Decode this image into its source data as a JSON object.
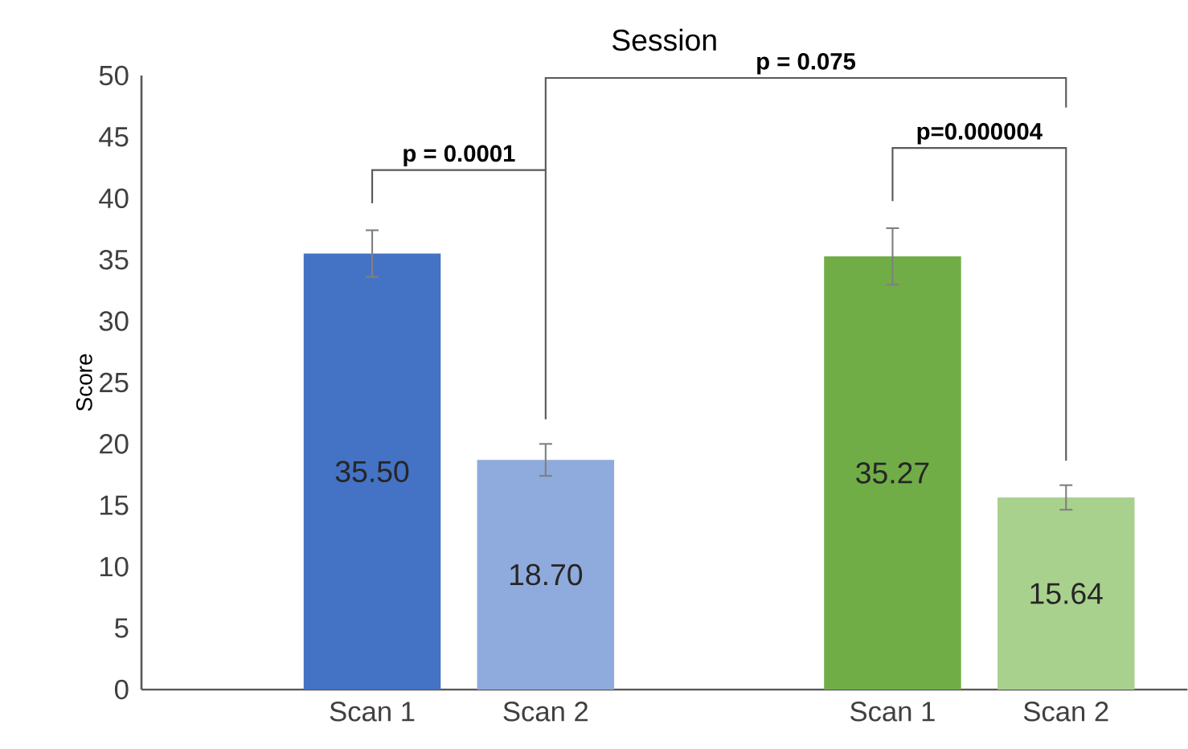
{
  "chart_data": {
    "type": "bar",
    "title": "Session",
    "ylabel": "Score",
    "categories": [
      "Scan 1",
      "Scan 2",
      null,
      "Scan 1",
      "Scan 2"
    ],
    "values": [
      35.5,
      18.7,
      null,
      35.27,
      15.64
    ],
    "colors": [
      "#4472c4",
      "#8faadc",
      null,
      "#70ad47",
      "#a9d18e"
    ],
    "errors": [
      1.9,
      1.3,
      null,
      2.3,
      1.0
    ],
    "value_labels": [
      "35.50",
      "18.70",
      null,
      "35.27",
      "15.64"
    ],
    "ylim": [
      0,
      50
    ],
    "yticks": [
      0,
      5,
      10,
      15,
      20,
      25,
      30,
      35,
      40,
      45,
      50
    ],
    "grid": false,
    "annotations": [
      "p = 0.0001",
      "p = 0.075",
      "p=0.000004"
    ]
  }
}
